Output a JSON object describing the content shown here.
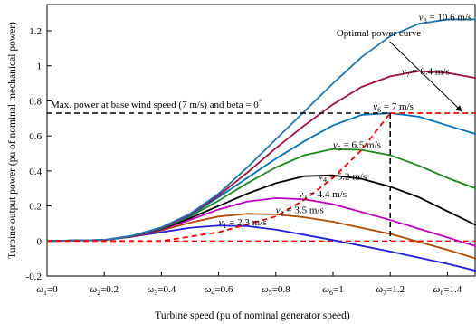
{
  "chart_data": {
    "type": "line",
    "xlabel": "Turbine speed  (pu of nominal generator speed)",
    "ylabel": "Turbine output power  (pu of nominal mechanical power)",
    "xlim": [
      0,
      1.5
    ],
    "ylim": [
      -0.2,
      1.35
    ],
    "grid": false,
    "x_ticks": [
      {
        "sym": "ω",
        "sub": "1",
        "rest": "=0",
        "value": 0
      },
      {
        "sym": "ω",
        "sub": "2",
        "rest": "=0.2",
        "value": 0.2
      },
      {
        "sym": "ω",
        "sub": "3",
        "rest": "=0.4",
        "value": 0.4
      },
      {
        "sym": "ω",
        "sub": "4",
        "rest": "=0.6",
        "value": 0.6
      },
      {
        "sym": "ω",
        "sub": "5",
        "rest": "=0.8",
        "value": 0.8
      },
      {
        "sym": "ω",
        "sub": "6",
        "rest": "=1",
        "value": 1.0
      },
      {
        "sym": "ω",
        "sub": "7",
        "rest": "=1.2",
        "value": 1.2
      },
      {
        "sym": "ω",
        "sub": "8",
        "rest": "=1.4",
        "value": 1.4
      }
    ],
    "y_ticks": [
      {
        "label": "-0.2",
        "value": -0.2
      },
      {
        "label": "0",
        "value": 0
      },
      {
        "label": "0.2",
        "value": 0.2
      },
      {
        "label": "0.4",
        "value": 0.4
      },
      {
        "label": "0.6",
        "value": 0.6
      },
      {
        "label": "0.8",
        "value": 0.8
      },
      {
        "label": "1",
        "value": 1.0
      },
      {
        "label": "1.2",
        "value": 1.2
      }
    ],
    "series": [
      {
        "name": "2.3 m/s",
        "sym": "v",
        "sub": "1",
        "rest": " = 2.3 m/s",
        "color": "#1f1fdc",
        "x": [
          0,
          0.2,
          0.3,
          0.4,
          0.5,
          0.6,
          0.7,
          0.8,
          1.0,
          1.2,
          1.4,
          1.5
        ],
        "y": [
          0,
          0.005,
          0.025,
          0.05,
          0.075,
          0.088,
          0.085,
          0.065,
          0.005,
          -0.06,
          -0.13,
          -0.17
        ],
        "label_at": [
          0.6,
          0.09
        ]
      },
      {
        "name": "3.5 m/s",
        "sym": "v",
        "sub": "2",
        "rest": " = 3.5 m/s",
        "color": "#b34a00",
        "x": [
          0,
          0.2,
          0.3,
          0.4,
          0.5,
          0.6,
          0.7,
          0.8,
          0.9,
          1.0,
          1.2,
          1.4,
          1.5
        ],
        "y": [
          0,
          0.006,
          0.025,
          0.06,
          0.105,
          0.14,
          0.155,
          0.152,
          0.135,
          0.11,
          0.04,
          -0.05,
          -0.1
        ],
        "label_at": [
          0.8,
          0.16
        ]
      },
      {
        "name": "4.4 m/s",
        "sym": "v",
        "sub": "3",
        "rest": " = 4.4 m/s",
        "color": "#c000c0",
        "x": [
          0,
          0.2,
          0.3,
          0.4,
          0.5,
          0.6,
          0.7,
          0.8,
          0.9,
          1.0,
          1.2,
          1.4,
          1.5
        ],
        "y": [
          0,
          0.006,
          0.026,
          0.065,
          0.12,
          0.18,
          0.225,
          0.245,
          0.238,
          0.21,
          0.12,
          0.02,
          -0.03
        ],
        "label_at": [
          0.88,
          0.25
        ]
      },
      {
        "name": "5.2 m/s",
        "sym": "v",
        "sub": "4",
        "rest": " = 5.2 m/s",
        "color": "#000000",
        "x": [
          0,
          0.2,
          0.3,
          0.4,
          0.5,
          0.6,
          0.7,
          0.8,
          0.9,
          1.0,
          1.1,
          1.2,
          1.3,
          1.4,
          1.5
        ],
        "y": [
          0,
          0.006,
          0.027,
          0.068,
          0.13,
          0.2,
          0.27,
          0.33,
          0.37,
          0.375,
          0.355,
          0.31,
          0.25,
          0.17,
          0.09
        ],
        "label_at": [
          0.95,
          0.35
        ]
      },
      {
        "name": "6.5 m/s",
        "sym": "v",
        "sub": "5",
        "rest": " = 6.5 m/s",
        "color": "#1a8a1a",
        "x": [
          0,
          0.2,
          0.3,
          0.4,
          0.5,
          0.6,
          0.7,
          0.8,
          0.9,
          1.0,
          1.1,
          1.2,
          1.3,
          1.4,
          1.5
        ],
        "y": [
          0,
          0.006,
          0.028,
          0.07,
          0.14,
          0.23,
          0.33,
          0.42,
          0.49,
          0.525,
          0.52,
          0.49,
          0.43,
          0.36,
          0.3
        ],
        "label_at": [
          1.0,
          0.53
        ]
      },
      {
        "name": "7 m/s",
        "sym": "v",
        "sub": "6",
        "rest": " = 7 m/s",
        "color": "#0072bd",
        "x": [
          0,
          0.2,
          0.3,
          0.4,
          0.5,
          0.6,
          0.7,
          0.8,
          0.9,
          1.0,
          1.1,
          1.2,
          1.3,
          1.4,
          1.5
        ],
        "y": [
          0,
          0.006,
          0.029,
          0.072,
          0.145,
          0.25,
          0.36,
          0.47,
          0.57,
          0.66,
          0.72,
          0.73,
          0.71,
          0.66,
          0.61
        ],
        "label_at": [
          1.14,
          0.75
        ]
      },
      {
        "name": "8.4 m/s",
        "sym": "v",
        "sub": "7",
        "rest": " = 8.4 m/s",
        "color": "#a3103a",
        "x": [
          0,
          0.2,
          0.3,
          0.4,
          0.5,
          0.6,
          0.7,
          0.8,
          0.9,
          1.0,
          1.1,
          1.2,
          1.3,
          1.4,
          1.5
        ],
        "y": [
          0,
          0.006,
          0.03,
          0.075,
          0.15,
          0.26,
          0.39,
          0.53,
          0.66,
          0.78,
          0.88,
          0.94,
          0.97,
          0.96,
          0.93
        ],
        "label_at": [
          1.24,
          0.95
        ]
      },
      {
        "name": "10.6 m/s",
        "sym": "v",
        "sub": "8",
        "rest": " = 10.6 m/s",
        "color": "#1f77b4",
        "x": [
          0,
          0.2,
          0.3,
          0.4,
          0.5,
          0.6,
          0.7,
          0.8,
          0.9,
          1.0,
          1.1,
          1.2,
          1.3,
          1.4,
          1.5
        ],
        "y": [
          0,
          0.006,
          0.031,
          0.078,
          0.155,
          0.27,
          0.42,
          0.58,
          0.74,
          0.9,
          1.05,
          1.17,
          1.24,
          1.265,
          1.265
        ],
        "label_at": [
          1.3,
          1.26
        ]
      }
    ],
    "optimal_curve": {
      "name": "Optimal power curve",
      "color": "#ff0000",
      "x": [
        0,
        0.2,
        0.4,
        0.6,
        0.8,
        0.9,
        1.0,
        1.1,
        1.2
      ],
      "y": [
        0,
        0,
        0,
        0.05,
        0.14,
        0.235,
        0.36,
        0.52,
        0.73
      ],
      "plateau": [
        0.73,
        1.5
      ],
      "baseline_zero_color": "#ff0000"
    },
    "max_power_line": {
      "text": "Max. power at base wind speed (7 m/s) and beta = 0",
      "degree": "°",
      "y": 0.73,
      "x_end": 1.2,
      "vertical_x": 1.2,
      "color": "#000000"
    },
    "annotations": [
      {
        "text": "Optimal power curve",
        "at": [
          1.16,
          1.17
        ],
        "arrow_to": [
          1.45,
          0.73
        ]
      }
    ]
  }
}
